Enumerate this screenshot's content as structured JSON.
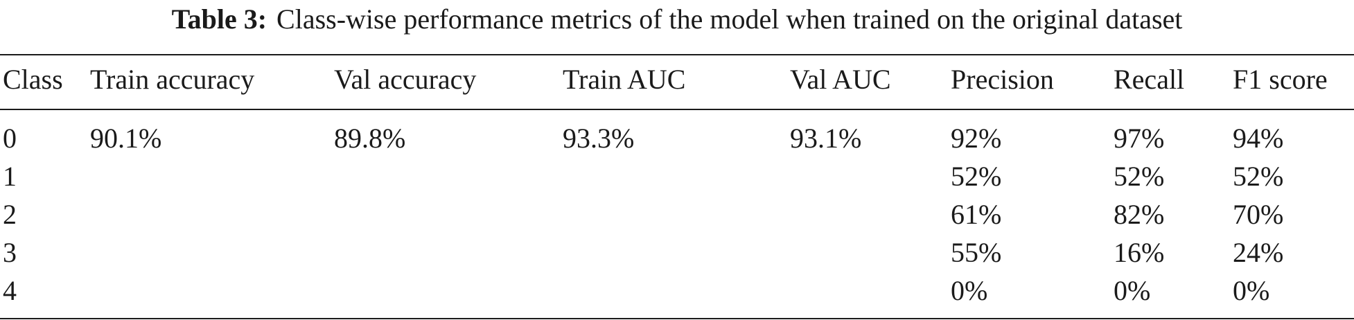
{
  "caption": {
    "label": "Table 3:",
    "text": "Class-wise performance metrics of the model when trained on the original dataset"
  },
  "table": {
    "headers": [
      "Class",
      "Train accuracy",
      "Val accuracy",
      "Train AUC",
      "Val AUC",
      "Precision",
      "Recall",
      "F1 score"
    ],
    "rows": [
      [
        "0",
        "90.1%",
        "89.8%",
        "93.3%",
        "93.1%",
        "92%",
        "97%",
        "94%"
      ],
      [
        "1",
        "",
        "",
        "",
        "",
        "52%",
        "52%",
        "52%"
      ],
      [
        "2",
        "",
        "",
        "",
        "",
        "61%",
        "82%",
        "70%"
      ],
      [
        "3",
        "",
        "",
        "",
        "",
        "55%",
        "16%",
        "24%"
      ],
      [
        "4",
        "",
        "",
        "",
        "",
        "0%",
        "0%",
        "0%"
      ]
    ]
  }
}
